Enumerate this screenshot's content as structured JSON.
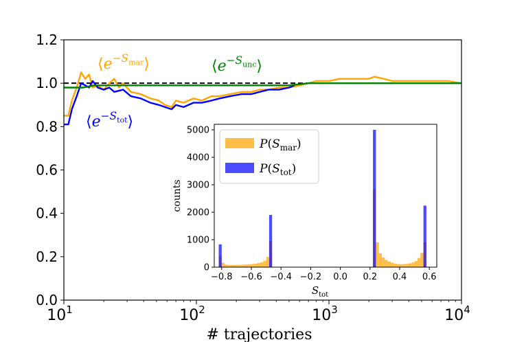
{
  "chart_data": [
    {
      "id": "main",
      "type": "line",
      "xscale": "log",
      "xlim": [
        10,
        10000
      ],
      "ylim": [
        0.0,
        1.2
      ],
      "xlabel": "# trajectories",
      "ylabel": "",
      "xticks": [
        10,
        100,
        1000,
        10000
      ],
      "xtick_labels": [
        {
          "base": "10",
          "exp": "1"
        },
        {
          "base": "10",
          "exp": "2"
        },
        {
          "base": "10",
          "exp": "3"
        },
        {
          "base": "10",
          "exp": "4"
        }
      ],
      "yticks": [
        0.0,
        0.2,
        0.4,
        0.6,
        0.8,
        1.0,
        1.2
      ],
      "ytick_labels": [
        "0.0",
        "0.2",
        "0.4",
        "0.6",
        "0.8",
        "1.0",
        "1.2"
      ],
      "reference_line": {
        "y": 1.0,
        "style": "dashed",
        "color": "#000000"
      },
      "series": [
        {
          "name": "mar",
          "color": "#ffa500",
          "label": {
            "base": "e",
            "sub": "mar"
          },
          "points": [
            [
              10,
              0.85
            ],
            [
              10.8,
              0.85
            ],
            [
              11.5,
              0.92
            ],
            [
              12.5,
              0.98
            ],
            [
              13.5,
              1.05
            ],
            [
              14.5,
              1.02
            ],
            [
              15.5,
              1.04
            ],
            [
              16.5,
              0.98
            ],
            [
              18,
              0.99
            ],
            [
              20,
              0.97
            ],
            [
              22,
              1.0
            ],
            [
              24,
              1.02
            ],
            [
              26,
              0.98
            ],
            [
              28,
              1.0
            ],
            [
              32,
              0.96
            ],
            [
              38,
              0.95
            ],
            [
              45,
              0.93
            ],
            [
              52,
              0.92
            ],
            [
              58,
              0.9
            ],
            [
              65,
              0.89
            ],
            [
              70,
              0.92
            ],
            [
              80,
              0.91
            ],
            [
              95,
              0.93
            ],
            [
              110,
              0.92
            ],
            [
              130,
              0.94
            ],
            [
              150,
              0.94
            ],
            [
              180,
              0.95
            ],
            [
              220,
              0.96
            ],
            [
              260,
              0.96
            ],
            [
              300,
              0.97
            ],
            [
              350,
              0.97
            ],
            [
              420,
              0.98
            ],
            [
              500,
              0.98
            ],
            [
              600,
              0.99
            ],
            [
              700,
              1.0
            ],
            [
              800,
              1.01
            ],
            [
              900,
              1.01
            ],
            [
              1000,
              1.01
            ],
            [
              1200,
              1.02
            ],
            [
              1500,
              1.02
            ],
            [
              2000,
              1.02
            ],
            [
              2200,
              1.03
            ],
            [
              2600,
              1.02
            ],
            [
              3000,
              1.01
            ],
            [
              4000,
              1.01
            ],
            [
              5000,
              1.01
            ],
            [
              6000,
              1.01
            ],
            [
              8000,
              1.01
            ],
            [
              10000,
              1.0
            ]
          ]
        },
        {
          "name": "tot",
          "color": "#0000ff",
          "label": {
            "base": "e",
            "sub": "tot"
          },
          "points": [
            [
              10,
              0.81
            ],
            [
              10.8,
              0.81
            ],
            [
              11.5,
              0.88
            ],
            [
              12.5,
              0.94
            ],
            [
              13.5,
              1.0
            ],
            [
              14.5,
              0.99
            ],
            [
              15.5,
              0.98
            ],
            [
              16.5,
              1.01
            ],
            [
              18,
              0.98
            ],
            [
              20,
              0.97
            ],
            [
              22,
              0.98
            ],
            [
              24,
              0.96
            ],
            [
              28,
              0.97
            ],
            [
              32,
              0.94
            ],
            [
              38,
              0.93
            ],
            [
              45,
              0.91
            ],
            [
              52,
              0.9
            ],
            [
              58,
              0.89
            ],
            [
              65,
              0.88
            ],
            [
              70,
              0.9
            ],
            [
              80,
              0.89
            ],
            [
              95,
              0.91
            ],
            [
              110,
              0.91
            ],
            [
              130,
              0.92
            ],
            [
              150,
              0.93
            ],
            [
              180,
              0.94
            ],
            [
              220,
              0.95
            ],
            [
              260,
              0.95
            ],
            [
              300,
              0.96
            ],
            [
              350,
              0.97
            ],
            [
              420,
              0.97
            ],
            [
              500,
              0.98
            ],
            [
              550,
              0.99
            ]
          ]
        },
        {
          "name": "unc",
          "color": "#008000",
          "label": {
            "base": "e",
            "sub": "unc"
          },
          "points": [
            [
              10,
              0.98
            ],
            [
              12,
              0.98
            ],
            [
              14,
              0.98
            ],
            [
              17,
              0.99
            ],
            [
              20,
              0.99
            ],
            [
              25,
              0.99
            ],
            [
              30,
              0.99
            ],
            [
              40,
              0.99
            ],
            [
              50,
              0.99
            ],
            [
              70,
              0.99
            ],
            [
              100,
              0.99
            ],
            [
              150,
              0.99
            ],
            [
              200,
              0.99
            ],
            [
              300,
              0.99
            ],
            [
              500,
              0.99
            ],
            [
              700,
              1.0
            ],
            [
              1000,
              1.0
            ],
            [
              2000,
              1.0
            ],
            [
              5000,
              1.0
            ],
            [
              10000,
              1.0
            ]
          ]
        }
      ]
    },
    {
      "id": "inset",
      "type": "bar",
      "title": "",
      "xlabel": {
        "base": "S",
        "sub": "tot"
      },
      "ylabel": "counts",
      "xlim": [
        -0.85,
        0.65
      ],
      "ylim": [
        0,
        5200
      ],
      "xticks": [
        -0.8,
        -0.6,
        -0.4,
        -0.2,
        0.0,
        0.2,
        0.4,
        0.6
      ],
      "xtick_labels": [
        "−0.8",
        "−0.6",
        "−0.4",
        "−0.2",
        "0.0",
        "0.2",
        "0.4",
        "0.6"
      ],
      "yticks": [
        0,
        1000,
        2000,
        3000,
        4000,
        5000
      ],
      "ytick_labels": [
        "0",
        "1000",
        "2000",
        "3000",
        "4000",
        "5000"
      ],
      "bin_width": 0.02,
      "series": [
        {
          "name": "P_mar",
          "color": "#ffa500",
          "opacity": 0.72,
          "legend": {
            "prefix": "P(",
            "base": "S",
            "sub": "mar",
            "suffix": ")"
          },
          "bins": [
            [
              -0.82,
              400
            ],
            [
              -0.8,
              160
            ],
            [
              -0.78,
              90
            ],
            [
              -0.76,
              80
            ],
            [
              -0.74,
              75
            ],
            [
              -0.72,
              75
            ],
            [
              -0.7,
              80
            ],
            [
              -0.68,
              85
            ],
            [
              -0.66,
              90
            ],
            [
              -0.64,
              95
            ],
            [
              -0.62,
              105
            ],
            [
              -0.6,
              115
            ],
            [
              -0.58,
              130
            ],
            [
              -0.56,
              150
            ],
            [
              -0.54,
              175
            ],
            [
              -0.52,
              230
            ],
            [
              -0.5,
              370
            ],
            [
              -0.48,
              950
            ],
            [
              0.22,
              2850
            ],
            [
              0.24,
              900
            ],
            [
              0.26,
              500
            ],
            [
              0.28,
              350
            ],
            [
              0.3,
              260
            ],
            [
              0.32,
              200
            ],
            [
              0.34,
              160
            ],
            [
              0.36,
              130
            ],
            [
              0.38,
              110
            ],
            [
              0.4,
              105
            ],
            [
              0.42,
              110
            ],
            [
              0.44,
              120
            ],
            [
              0.46,
              140
            ],
            [
              0.48,
              170
            ],
            [
              0.5,
              220
            ],
            [
              0.52,
              330
            ],
            [
              0.54,
              520
            ],
            [
              0.56,
              900
            ]
          ]
        },
        {
          "name": "P_tot",
          "color": "#0000ff",
          "opacity": 0.7,
          "legend": {
            "prefix": "P(",
            "base": "S",
            "sub": "tot",
            "suffix": ")"
          },
          "bins": [
            [
              -0.82,
              830
            ],
            [
              -0.48,
              1900
            ],
            [
              0.22,
              5000
            ],
            [
              0.56,
              2240
            ]
          ]
        }
      ]
    }
  ]
}
